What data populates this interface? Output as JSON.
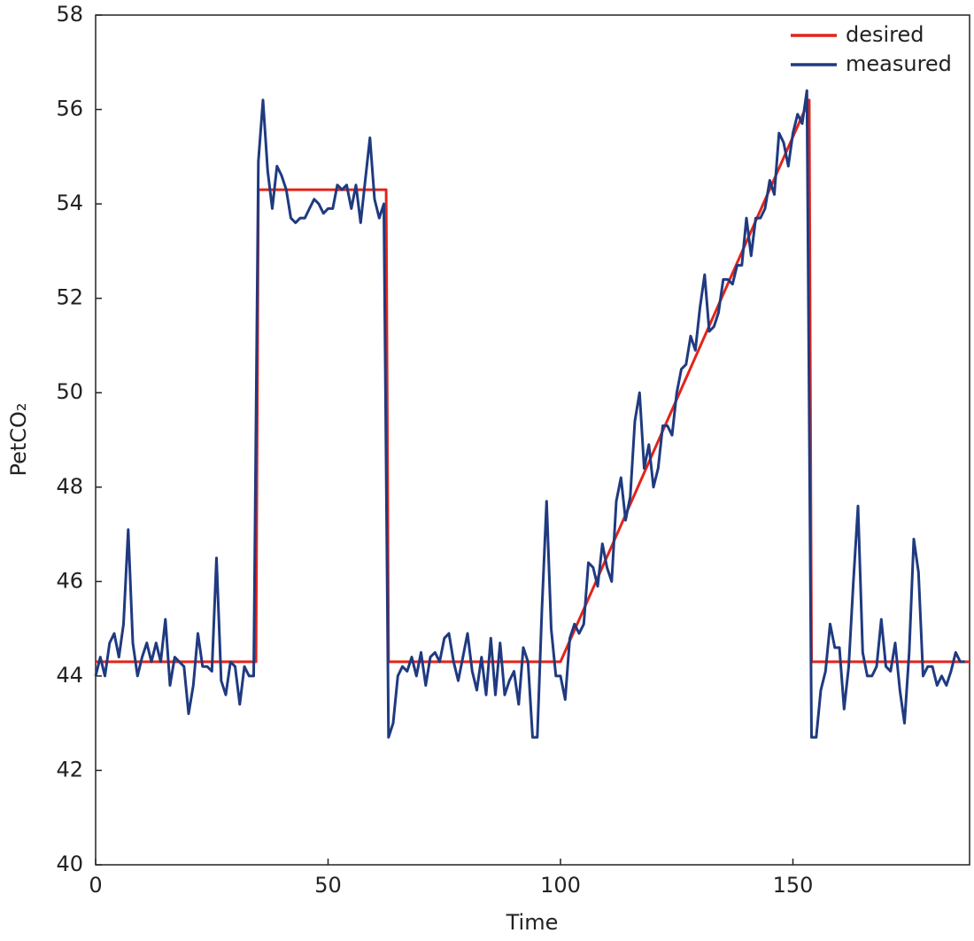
{
  "chart_data": {
    "type": "line",
    "xlabel": "Time",
    "ylabel": "PetCO₂",
    "xlim": [
      0,
      188
    ],
    "ylim": [
      40,
      58
    ],
    "xticks": [
      0,
      50,
      100,
      150
    ],
    "yticks": [
      40,
      42,
      44,
      46,
      48,
      50,
      52,
      54,
      56,
      58
    ],
    "grid": false,
    "legend": "upper right",
    "series": [
      {
        "name": "desired",
        "color": "#e3241b",
        "x": [
          0,
          34.5,
          35,
          62.5,
          63,
          100,
          153.5,
          154,
          188
        ],
        "values": [
          44.3,
          44.3,
          54.3,
          54.3,
          44.3,
          44.3,
          56.2,
          44.3,
          44.3
        ]
      },
      {
        "name": "measured",
        "color": "#1f3a80",
        "x": [
          0,
          1,
          2,
          3,
          4,
          5,
          6,
          7,
          8,
          9,
          10,
          11,
          12,
          13,
          14,
          15,
          16,
          17,
          18,
          19,
          20,
          21,
          22,
          23,
          24,
          25,
          26,
          27,
          28,
          29,
          30,
          31,
          32,
          33,
          34,
          35,
          36,
          37,
          38,
          39,
          40,
          41,
          42,
          43,
          44,
          45,
          46,
          47,
          48,
          49,
          50,
          51,
          52,
          53,
          54,
          55,
          56,
          57,
          58,
          59,
          60,
          61,
          62,
          63,
          64,
          65,
          66,
          67,
          68,
          69,
          70,
          71,
          72,
          73,
          74,
          75,
          76,
          77,
          78,
          79,
          80,
          81,
          82,
          83,
          84,
          85,
          86,
          87,
          88,
          89,
          90,
          91,
          92,
          93,
          94,
          95,
          96,
          97,
          98,
          99,
          100,
          101,
          102,
          103,
          104,
          105,
          106,
          107,
          108,
          109,
          110,
          111,
          112,
          113,
          114,
          115,
          116,
          117,
          118,
          119,
          120,
          121,
          122,
          123,
          124,
          125,
          126,
          127,
          128,
          129,
          130,
          131,
          132,
          133,
          134,
          135,
          136,
          137,
          138,
          139,
          140,
          141,
          142,
          143,
          144,
          145,
          146,
          147,
          148,
          149,
          150,
          151,
          152,
          153,
          154,
          155,
          156,
          157,
          158,
          159,
          160,
          161,
          162,
          163,
          164,
          165,
          166,
          167,
          168,
          169,
          170,
          171,
          172,
          173,
          174,
          175,
          176,
          177,
          178,
          179,
          180,
          181,
          182,
          183,
          184,
          185,
          186,
          187
        ],
        "values": [
          44.0,
          44.4,
          44.0,
          44.7,
          44.9,
          44.4,
          45.1,
          47.1,
          44.7,
          44.0,
          44.4,
          44.7,
          44.3,
          44.7,
          44.3,
          45.2,
          43.8,
          44.4,
          44.3,
          44.2,
          43.2,
          43.8,
          44.9,
          44.2,
          44.2,
          44.1,
          46.5,
          43.9,
          43.6,
          44.3,
          44.2,
          43.4,
          44.2,
          44.0,
          44.0,
          54.9,
          56.2,
          54.7,
          53.9,
          54.8,
          54.6,
          54.3,
          53.7,
          53.6,
          53.7,
          53.7,
          53.9,
          54.1,
          54.0,
          53.8,
          53.9,
          53.9,
          54.4,
          54.3,
          54.4,
          53.9,
          54.4,
          53.6,
          54.5,
          55.4,
          54.1,
          53.7,
          54.0,
          42.7,
          43.0,
          44.0,
          44.2,
          44.1,
          44.4,
          44.0,
          44.5,
          43.8,
          44.4,
          44.5,
          44.3,
          44.8,
          44.9,
          44.3,
          43.9,
          44.4,
          44.9,
          44.1,
          43.7,
          44.4,
          43.6,
          44.8,
          43.6,
          44.7,
          43.6,
          43.9,
          44.1,
          43.4,
          44.6,
          44.3,
          42.7,
          42.7,
          45.4,
          47.7,
          45.0,
          44.0,
          44.0,
          43.5,
          44.8,
          45.1,
          44.9,
          45.1,
          46.4,
          46.3,
          45.9,
          46.8,
          46.3,
          46.0,
          47.7,
          48.2,
          47.3,
          47.8,
          49.4,
          50.0,
          48.4,
          48.9,
          48.0,
          48.4,
          49.3,
          49.3,
          49.1,
          50.0,
          50.5,
          50.6,
          51.2,
          50.9,
          51.8,
          52.5,
          51.3,
          51.4,
          51.7,
          52.4,
          52.4,
          52.3,
          52.7,
          52.7,
          53.7,
          52.9,
          53.7,
          53.7,
          53.9,
          54.5,
          54.2,
          55.5,
          55.3,
          54.8,
          55.5,
          55.9,
          55.7,
          56.4,
          42.7,
          42.7,
          43.7,
          44.1,
          45.1,
          44.6,
          44.6,
          43.3,
          44.2,
          46.0,
          47.6,
          44.5,
          44.0,
          44.0,
          44.2,
          45.2,
          44.2,
          44.1,
          44.7,
          43.7,
          43.0,
          44.5,
          46.9,
          46.2,
          44.0,
          44.2,
          44.2,
          43.8,
          44.0,
          43.8,
          44.1,
          44.5,
          44.3,
          44.3
        ]
      }
    ]
  }
}
